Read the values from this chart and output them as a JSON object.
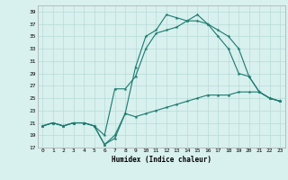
{
  "xlabel": "Humidex (Indice chaleur)",
  "ylabel": "",
  "bg_color": "#d8f0ee",
  "grid_color": "#b8dbd8",
  "line_color": "#1a7a6e",
  "xlim": [
    -0.5,
    23.5
  ],
  "ylim": [
    17,
    40
  ],
  "yticks": [
    17,
    19,
    21,
    23,
    25,
    27,
    29,
    31,
    33,
    35,
    37,
    39
  ],
  "xticks": [
    0,
    1,
    2,
    3,
    4,
    5,
    6,
    7,
    8,
    9,
    10,
    11,
    12,
    13,
    14,
    15,
    16,
    17,
    18,
    19,
    20,
    21,
    22,
    23
  ],
  "line1_x": [
    0,
    1,
    2,
    3,
    4,
    5,
    6,
    7,
    8,
    9,
    10,
    11,
    12,
    13,
    14,
    15,
    16,
    17,
    18,
    19,
    20,
    21,
    22,
    23
  ],
  "line1_y": [
    20.5,
    21,
    20.5,
    21,
    21,
    20.5,
    17.5,
    18.5,
    22.5,
    30,
    35,
    36,
    38.5,
    38,
    37.5,
    38.5,
    37,
    36,
    35,
    33,
    28.5,
    26,
    25,
    24.5
  ],
  "line2_x": [
    0,
    1,
    2,
    3,
    4,
    5,
    6,
    7,
    8,
    9,
    10,
    11,
    12,
    13,
    14,
    15,
    16,
    17,
    18,
    19,
    20,
    21,
    22,
    23
  ],
  "line2_y": [
    20.5,
    21,
    20.5,
    21,
    21,
    20.5,
    19,
    26.5,
    26.5,
    28.5,
    33,
    35.5,
    36,
    36.5,
    37.5,
    37.5,
    37,
    35,
    33,
    29,
    28.5,
    26,
    25,
    24.5
  ],
  "line3_x": [
    0,
    1,
    2,
    3,
    4,
    5,
    6,
    7,
    8,
    9,
    10,
    11,
    12,
    13,
    14,
    15,
    16,
    17,
    18,
    19,
    20,
    21,
    22,
    23
  ],
  "line3_y": [
    20.5,
    21,
    20.5,
    21,
    21,
    20.5,
    17.5,
    19,
    22.5,
    22,
    22.5,
    23,
    23.5,
    24,
    24.5,
    25,
    25.5,
    25.5,
    25.5,
    26,
    26,
    26,
    25,
    24.5
  ]
}
